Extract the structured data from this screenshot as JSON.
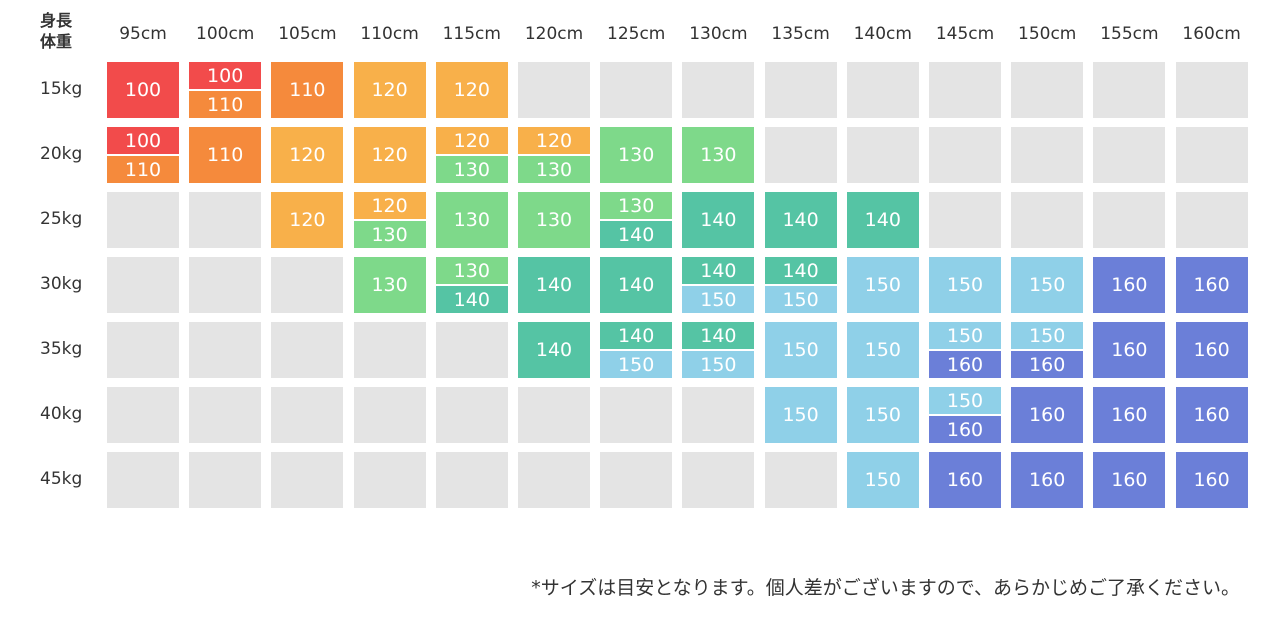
{
  "chart_data": {
    "type": "table",
    "corner_label_top": "身長",
    "corner_label_bottom": "体重",
    "heights": [
      "95cm",
      "100cm",
      "105cm",
      "110cm",
      "115cm",
      "120cm",
      "125cm",
      "130cm",
      "135cm",
      "140cm",
      "145cm",
      "150cm",
      "155cm",
      "160cm"
    ],
    "weights": [
      "15kg",
      "20kg",
      "25kg",
      "30kg",
      "35kg",
      "40kg",
      "45kg"
    ],
    "sizes": [
      [
        [
          "100"
        ],
        [
          "100",
          "110"
        ],
        [
          "110"
        ],
        [
          "120"
        ],
        [
          "120"
        ],
        [],
        [],
        [],
        [],
        [],
        [],
        [],
        [],
        []
      ],
      [
        [
          "100",
          "110"
        ],
        [
          "110"
        ],
        [
          "120"
        ],
        [
          "120"
        ],
        [
          "120",
          "130"
        ],
        [
          "120",
          "130"
        ],
        [
          "130"
        ],
        [
          "130"
        ],
        [],
        [],
        [],
        [],
        [],
        []
      ],
      [
        [],
        [],
        [
          "120"
        ],
        [
          "120",
          "130"
        ],
        [
          "130"
        ],
        [
          "130"
        ],
        [
          "130",
          "140"
        ],
        [
          "140"
        ],
        [
          "140"
        ],
        [
          "140"
        ],
        [],
        [],
        [],
        []
      ],
      [
        [],
        [],
        [],
        [
          "130"
        ],
        [
          "130",
          "140"
        ],
        [
          "140"
        ],
        [
          "140"
        ],
        [
          "140",
          "150"
        ],
        [
          "140",
          "150"
        ],
        [
          "150"
        ],
        [
          "150"
        ],
        [
          "150"
        ],
        [
          "160"
        ],
        [
          "160"
        ]
      ],
      [
        [],
        [],
        [],
        [],
        [],
        [
          "140"
        ],
        [
          "140",
          "150"
        ],
        [
          "140",
          "150"
        ],
        [
          "150"
        ],
        [
          "150"
        ],
        [
          "150",
          "160"
        ],
        [
          "150",
          "160"
        ],
        [
          "160"
        ],
        [
          "160"
        ]
      ],
      [
        [],
        [],
        [],
        [],
        [],
        [],
        [],
        [],
        [
          "150"
        ],
        [
          "150"
        ],
        [
          "150",
          "160"
        ],
        [
          "160"
        ],
        [
          "160"
        ],
        [
          "160"
        ]
      ],
      [
        [],
        [],
        [],
        [],
        [],
        [],
        [],
        [],
        [],
        [
          "150"
        ],
        [
          "160"
        ],
        [
          "160"
        ],
        [
          "160"
        ],
        [
          "160"
        ]
      ]
    ],
    "size_colors": {
      "100": "#f24b4b",
      "110": "#f58a3c",
      "120": "#f8b04a",
      "130": "#7ed98a",
      "140": "#55c4a4",
      "150": "#8fd0e8",
      "160": "#6b7fd8"
    },
    "empty_color": "#e4e4e4"
  },
  "footnote": "*サイズは目安となります。個人差がございますので、あらかじめご了承ください。"
}
